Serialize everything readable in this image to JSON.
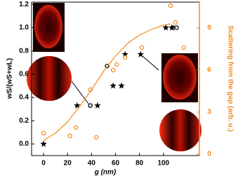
{
  "chart_data": {
    "type": "scatter",
    "x_label": "g (nm)",
    "y_label": "wS/(wS+wL)",
    "y2_label": "Scattering from the gap (arb. u.)",
    "xlim": [
      -10,
      130
    ],
    "xticks": [
      0,
      20,
      40,
      60,
      80,
      100
    ],
    "ylim": [
      -0.1,
      1.22
    ],
    "yticks": [
      {
        "value": 0,
        "label": "0.0"
      },
      {
        "value": 0.2,
        "label": "0.2"
      },
      {
        "value": 0.4,
        "label": "0.4"
      },
      {
        "value": 0.6,
        "label": "0.6"
      },
      {
        "value": 0.8,
        "label": "0.8"
      },
      {
        "value": 1,
        "label": "1.0"
      },
      {
        "value": 1.2,
        "label": "1.2"
      }
    ],
    "y2lim": [
      -0.1,
      10.85
    ],
    "y2ticks": [
      0,
      3,
      6,
      9
    ],
    "y2_color": "#f28a1e",
    "series": [
      {
        "marker": "star",
        "color": "#000000",
        "x": [
          0,
          28,
          45,
          58,
          65,
          68,
          81,
          102,
          107
        ],
        "values": [
          0.0,
          0.33,
          0.33,
          0.5,
          0.5,
          0.77,
          0.77,
          1.0,
          1.0
        ]
      },
      {
        "marker": "open-circle",
        "color": "#000000",
        "x": [
          39,
          53,
          108,
          111
        ],
        "values": [
          0.33,
          0.67,
          1.0,
          1.0
        ]
      },
      {
        "marker": "open-circle",
        "color": "#f28a1e",
        "axis": "y2",
        "x": [
          0,
          22,
          27,
          39,
          44,
          58,
          61,
          68,
          82,
          106,
          110,
          117
        ],
        "values": [
          1.5,
          1.3,
          1.9,
          4.6,
          1.2,
          6.0,
          6.4,
          6.9,
          7.6,
          10.6,
          9.4,
          7.6
        ]
      },
      {
        "marker": "line",
        "color": "#f28a1e",
        "axis": "y2",
        "x": [
          0,
          10,
          20,
          30,
          40,
          50,
          60,
          70,
          80,
          90,
          100,
          106
        ],
        "values": [
          1.0,
          1.5,
          2.3,
          3.4,
          4.6,
          5.9,
          7.0,
          7.9,
          8.5,
          8.9,
          9.2,
          9.3
        ]
      }
    ]
  }
}
